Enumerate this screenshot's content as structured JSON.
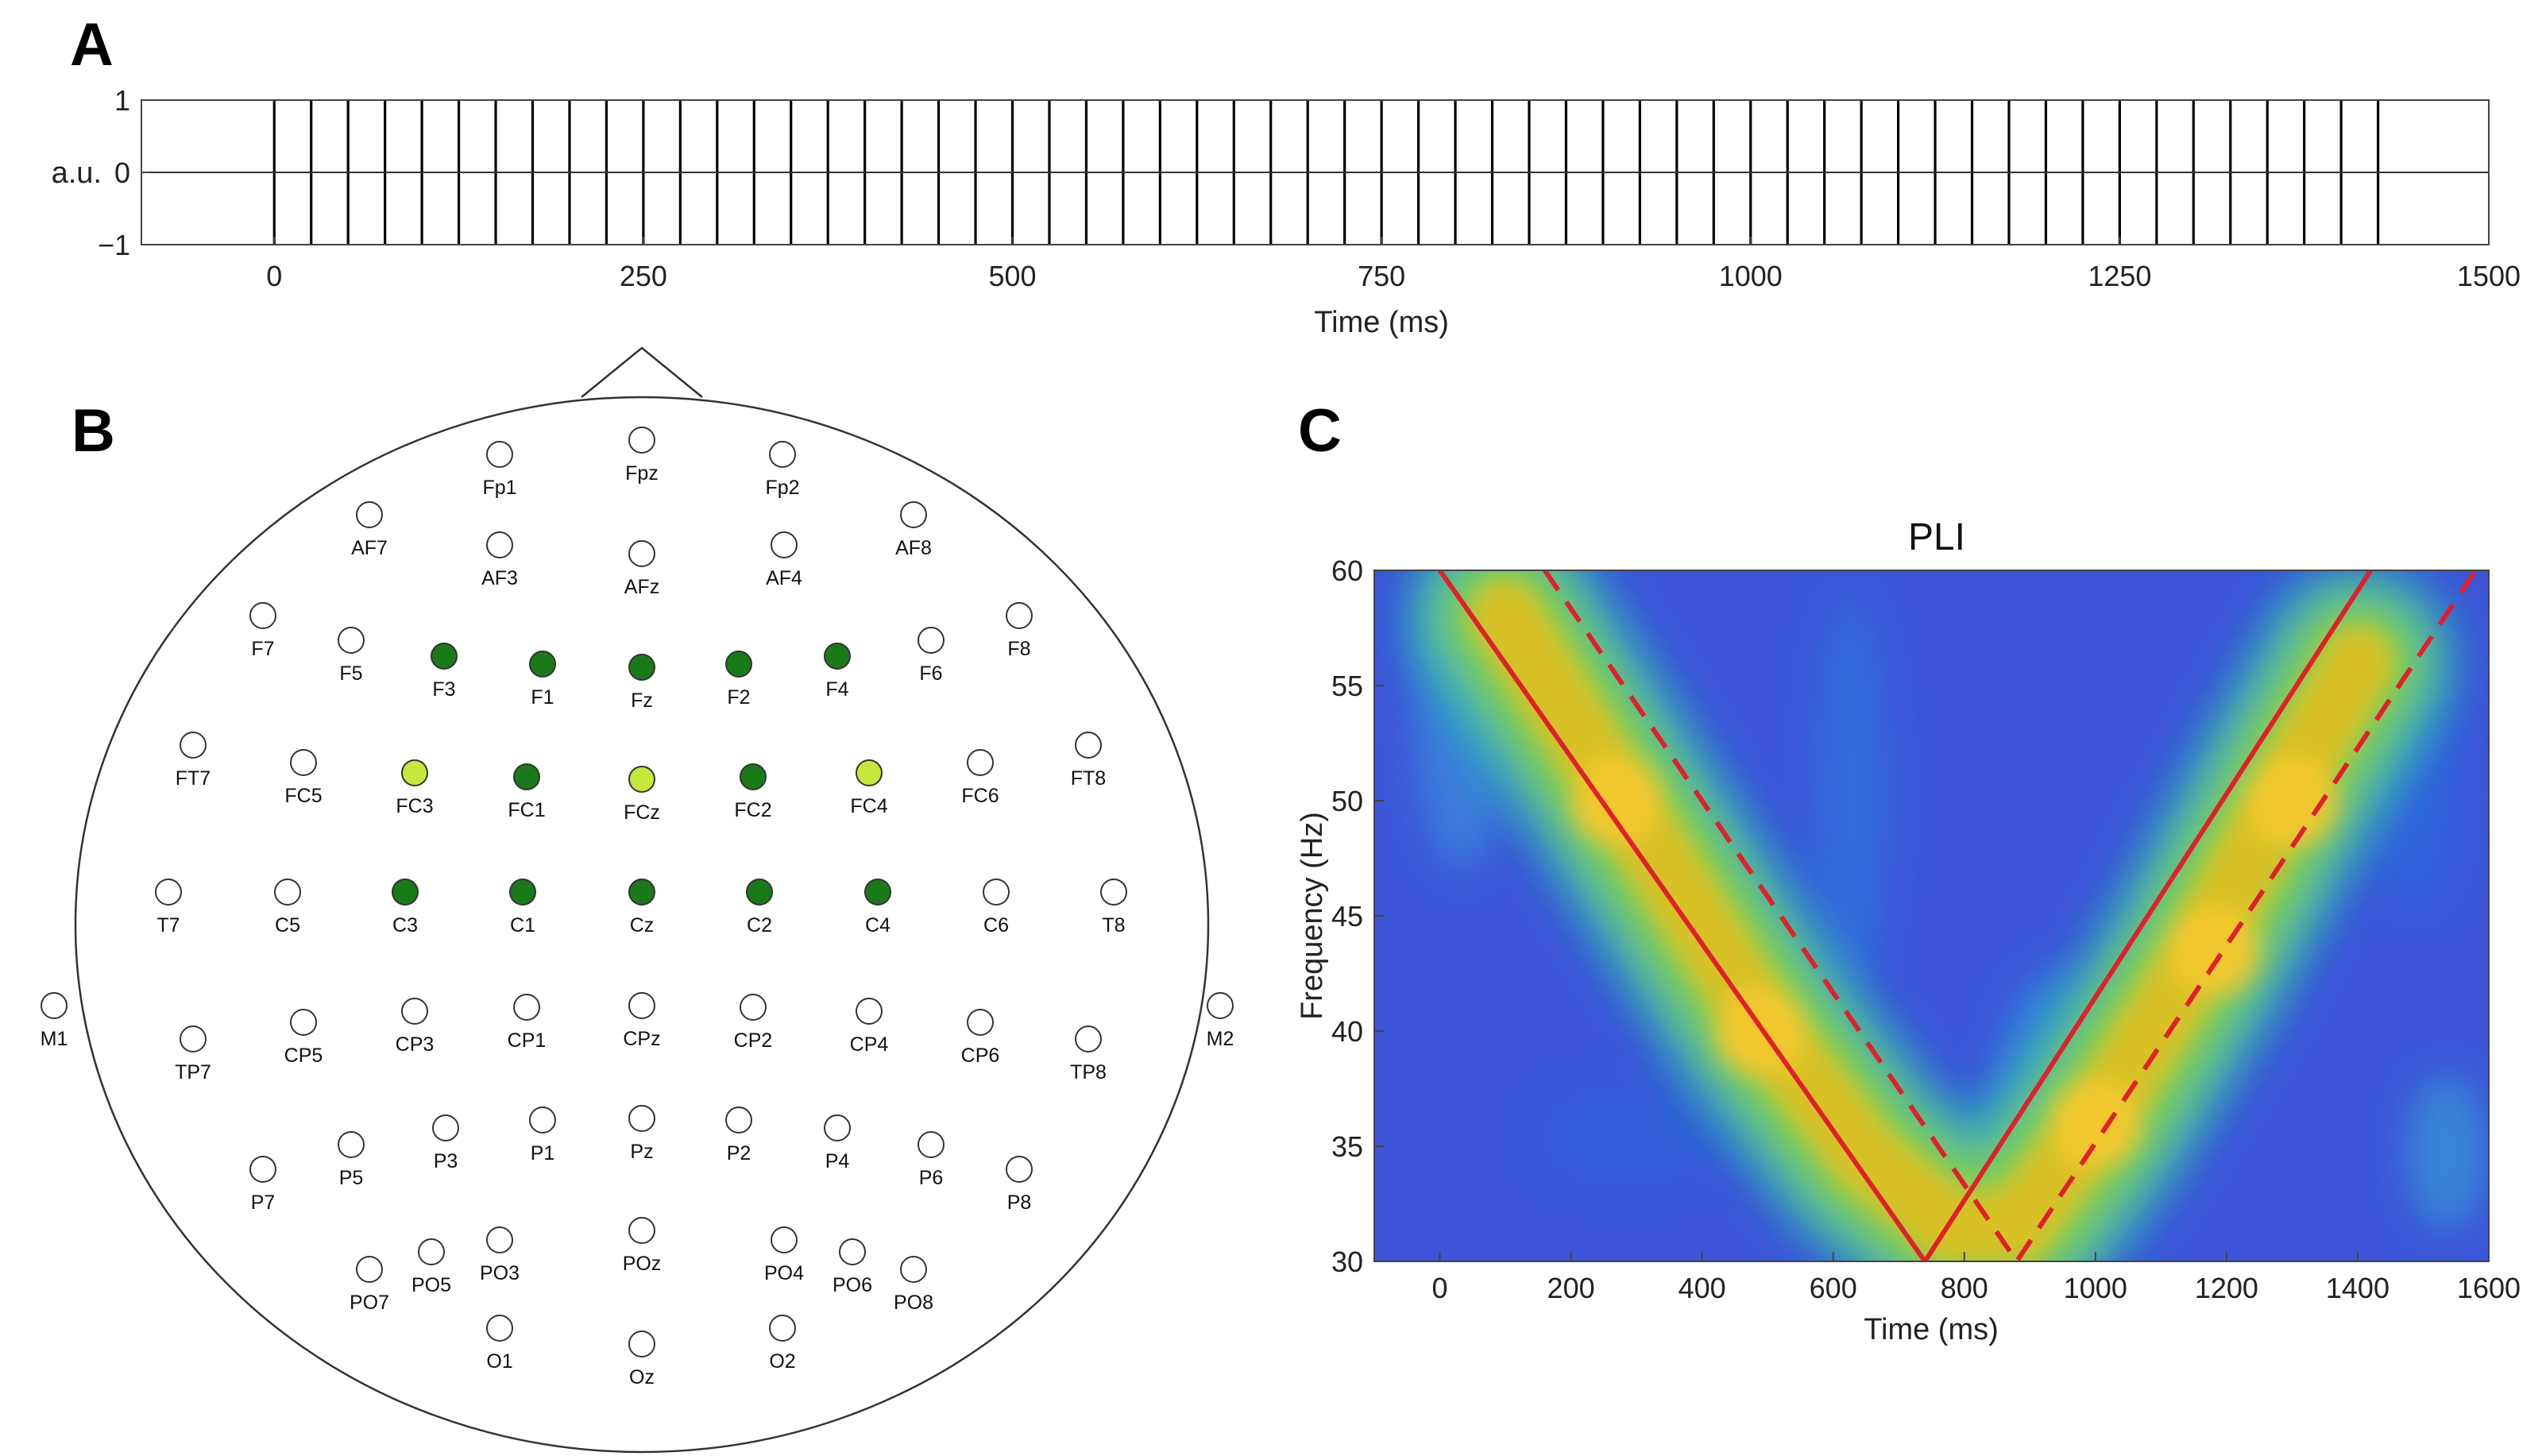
{
  "panels": {
    "a": "A",
    "b": "B",
    "c": "C"
  },
  "colors": {
    "pulse": "#000000",
    "axis": "#333333",
    "electrode_open": "#ffffff",
    "electrode_dark": "#1a7a1a",
    "electrode_light": "#c6e83c",
    "curve": "#e0202a"
  },
  "chart_data": [
    {
      "id": "A",
      "type": "line",
      "title": "",
      "xlabel": "Time (ms)",
      "ylabel": "a.u.",
      "xlim": [
        -90,
        1500
      ],
      "ylim": [
        -1,
        1
      ],
      "xticks": [
        0,
        250,
        500,
        750,
        1000,
        1250,
        1500
      ],
      "xtick_labels": [
        "0",
        "250",
        "500",
        "750",
        "1000",
        "1250",
        "1500"
      ],
      "yticks": [
        1,
        0,
        -1
      ],
      "ytick_labels": [
        "1",
        "0",
        "−1"
      ],
      "pulse_amplitude": 1,
      "pulse_period_ms": 25,
      "pulse_start_ms": 0,
      "pulse_end_ms": 1425,
      "baseline": 0
    },
    {
      "id": "C",
      "type": "heatmap",
      "title": "PLI",
      "xlabel": "Time (ms)",
      "ylabel": "Frequency (Hz)",
      "xlim": [
        -100,
        1600
      ],
      "ylim": [
        30,
        60
      ],
      "xticks": [
        0,
        200,
        400,
        600,
        800,
        1000,
        1200,
        1400,
        1600
      ],
      "xtick_labels": [
        "0",
        "200",
        "400",
        "600",
        "800",
        "1000",
        "1200",
        "1400",
        "1600"
      ],
      "yticks": [
        30,
        35,
        40,
        45,
        50,
        55,
        60
      ],
      "ytick_labels": [
        "30",
        "35",
        "40",
        "45",
        "50",
        "55",
        "60"
      ],
      "colormap": "parula",
      "series": [
        {
          "name": "solid",
          "style": "solid",
          "x": [
            0,
            740,
            1420
          ],
          "y": [
            60,
            30,
            60
          ]
        },
        {
          "name": "dashed",
          "style": "dashed",
          "x": [
            160,
            880,
            1580
          ],
          "y": [
            60,
            30,
            60
          ]
        }
      ],
      "ridge": {
        "x": [
          100,
          300,
          500,
          650,
          780,
          880,
          1000,
          1150,
          1300,
          1400
        ],
        "y": [
          58,
          49,
          40,
          34.5,
          31.5,
          31.5,
          36,
          43,
          51,
          56
        ]
      }
    }
  ],
  "head": {
    "electrodes": [
      {
        "label": "Fp1",
        "state": "open"
      },
      {
        "label": "Fpz",
        "state": "open"
      },
      {
        "label": "Fp2",
        "state": "open"
      },
      {
        "label": "AF7",
        "state": "open"
      },
      {
        "label": "AF3",
        "state": "open"
      },
      {
        "label": "AFz",
        "state": "open"
      },
      {
        "label": "AF4",
        "state": "open"
      },
      {
        "label": "AF8",
        "state": "open"
      },
      {
        "label": "F7",
        "state": "open"
      },
      {
        "label": "F5",
        "state": "open"
      },
      {
        "label": "F3",
        "state": "dark"
      },
      {
        "label": "F1",
        "state": "dark"
      },
      {
        "label": "Fz",
        "state": "dark"
      },
      {
        "label": "F2",
        "state": "dark"
      },
      {
        "label": "F4",
        "state": "dark"
      },
      {
        "label": "F6",
        "state": "open"
      },
      {
        "label": "F8",
        "state": "open"
      },
      {
        "label": "FT7",
        "state": "open"
      },
      {
        "label": "FC5",
        "state": "open"
      },
      {
        "label": "FC3",
        "state": "light"
      },
      {
        "label": "FC1",
        "state": "dark"
      },
      {
        "label": "FCz",
        "state": "light"
      },
      {
        "label": "FC2",
        "state": "dark"
      },
      {
        "label": "FC4",
        "state": "light"
      },
      {
        "label": "FC6",
        "state": "open"
      },
      {
        "label": "FT8",
        "state": "open"
      },
      {
        "label": "T7",
        "state": "open"
      },
      {
        "label": "C5",
        "state": "open"
      },
      {
        "label": "C3",
        "state": "dark"
      },
      {
        "label": "C1",
        "state": "dark"
      },
      {
        "label": "Cz",
        "state": "dark"
      },
      {
        "label": "C2",
        "state": "dark"
      },
      {
        "label": "C4",
        "state": "dark"
      },
      {
        "label": "C6",
        "state": "open"
      },
      {
        "label": "T8",
        "state": "open"
      },
      {
        "label": "M1",
        "state": "open"
      },
      {
        "label": "TP7",
        "state": "open"
      },
      {
        "label": "CP5",
        "state": "open"
      },
      {
        "label": "CP3",
        "state": "open"
      },
      {
        "label": "CP1",
        "state": "open"
      },
      {
        "label": "CPz",
        "state": "open"
      },
      {
        "label": "CP2",
        "state": "open"
      },
      {
        "label": "CP4",
        "state": "open"
      },
      {
        "label": "CP6",
        "state": "open"
      },
      {
        "label": "TP8",
        "state": "open"
      },
      {
        "label": "M2",
        "state": "open"
      },
      {
        "label": "P7",
        "state": "open"
      },
      {
        "label": "P5",
        "state": "open"
      },
      {
        "label": "P3",
        "state": "open"
      },
      {
        "label": "P1",
        "state": "open"
      },
      {
        "label": "Pz",
        "state": "open"
      },
      {
        "label": "P2",
        "state": "open"
      },
      {
        "label": "P4",
        "state": "open"
      },
      {
        "label": "P6",
        "state": "open"
      },
      {
        "label": "P8",
        "state": "open"
      },
      {
        "label": "PO7",
        "state": "open"
      },
      {
        "label": "PO5",
        "state": "open"
      },
      {
        "label": "PO3",
        "state": "open"
      },
      {
        "label": "POz",
        "state": "open"
      },
      {
        "label": "PO4",
        "state": "open"
      },
      {
        "label": "PO6",
        "state": "open"
      },
      {
        "label": "PO8",
        "state": "open"
      },
      {
        "label": "O1",
        "state": "open"
      },
      {
        "label": "Oz",
        "state": "open"
      },
      {
        "label": "O2",
        "state": "open"
      }
    ]
  }
}
